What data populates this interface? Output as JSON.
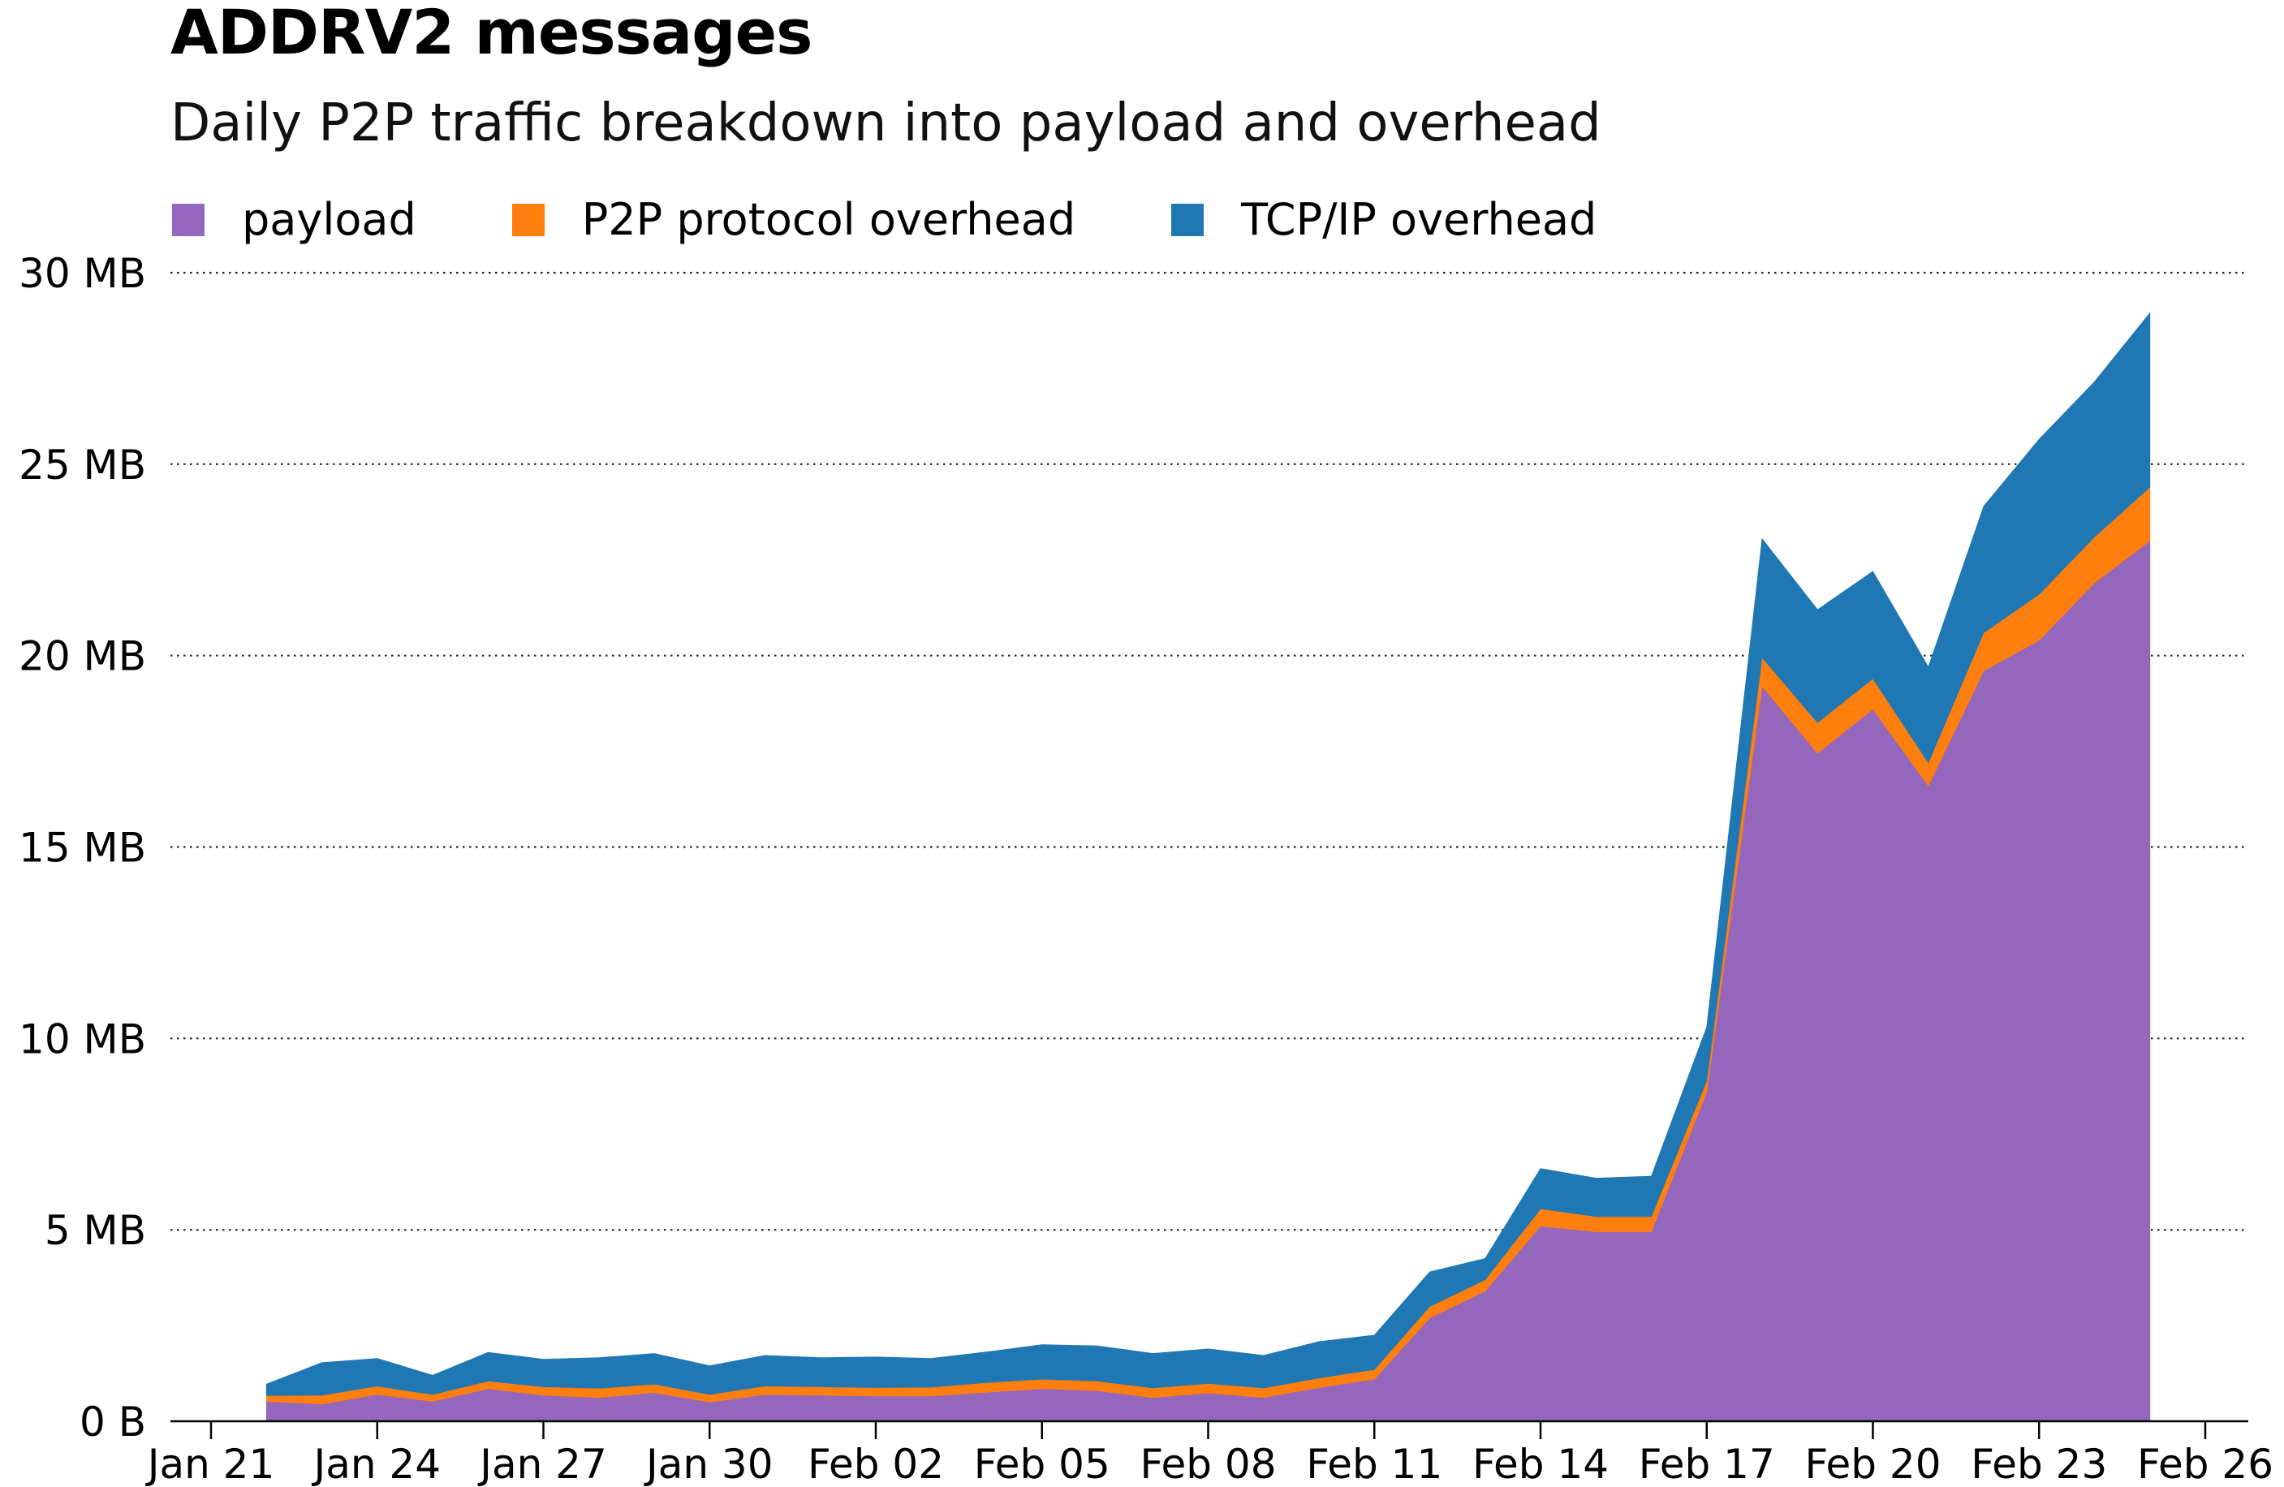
{
  "chart_data": {
    "type": "area",
    "stacked": true,
    "title": "ADDRV2 messages",
    "subtitle": "Daily P2P traffic breakdown into payload and overhead",
    "xlabel": "",
    "ylabel": "",
    "x_start": "2021-01-22",
    "x_end": "2021-02-25",
    "x_ticks": [
      {
        "date": "2021-01-21",
        "label": "Jan 21"
      },
      {
        "date": "2021-01-24",
        "label": "Jan 24"
      },
      {
        "date": "2021-01-27",
        "label": "Jan 27"
      },
      {
        "date": "2021-01-30",
        "label": "Jan 30"
      },
      {
        "date": "2021-02-02",
        "label": "Feb 02"
      },
      {
        "date": "2021-02-05",
        "label": "Feb 05"
      },
      {
        "date": "2021-02-08",
        "label": "Feb 08"
      },
      {
        "date": "2021-02-11",
        "label": "Feb 11"
      },
      {
        "date": "2021-02-14",
        "label": "Feb 14"
      },
      {
        "date": "2021-02-17",
        "label": "Feb 17"
      },
      {
        "date": "2021-02-20",
        "label": "Feb 20"
      },
      {
        "date": "2021-02-23",
        "label": "Feb 23"
      },
      {
        "date": "2021-02-26",
        "label": "Feb 26"
      }
    ],
    "y_ticks": [
      {
        "value": 0,
        "label": "0 B"
      },
      {
        "value": 5,
        "label": "5 MB"
      },
      {
        "value": 10,
        "label": "10 MB"
      },
      {
        "value": 15,
        "label": "15 MB"
      },
      {
        "value": 20,
        "label": "20 MB"
      },
      {
        "value": 25,
        "label": "25 MB"
      },
      {
        "value": 30,
        "label": "30 MB"
      }
    ],
    "ylim": [
      0,
      30
    ],
    "y_unit": "MB",
    "grid": "horizontal dotted",
    "legend_position": "top-left",
    "series": [
      {
        "name": "payload",
        "color": "#9467bd",
        "values": [
          0.52,
          0.45,
          0.7,
          0.52,
          0.85,
          0.68,
          0.62,
          0.75,
          0.5,
          0.7,
          0.68,
          0.66,
          0.66,
          0.76,
          0.85,
          0.8,
          0.62,
          0.74,
          0.62,
          0.88,
          1.1,
          2.7,
          3.4,
          5.1,
          4.95,
          4.95,
          8.6,
          19.2,
          17.45,
          18.6,
          16.6,
          19.6,
          20.4,
          21.9,
          23.0
        ]
      },
      {
        "name": "P2P protocol overhead",
        "color": "#ff7f0e",
        "values": [
          0.15,
          0.23,
          0.22,
          0.18,
          0.2,
          0.22,
          0.24,
          0.22,
          0.2,
          0.22,
          0.22,
          0.22,
          0.23,
          0.25,
          0.25,
          0.25,
          0.25,
          0.25,
          0.25,
          0.25,
          0.25,
          0.3,
          0.3,
          0.45,
          0.4,
          0.4,
          0.3,
          0.75,
          0.8,
          0.8,
          0.6,
          1.0,
          1.2,
          1.2,
          1.4
        ]
      },
      {
        "name": "TCP/IP overhead",
        "color": "#1f77b4",
        "values": [
          0.3,
          0.85,
          0.72,
          0.5,
          0.75,
          0.72,
          0.8,
          0.8,
          0.75,
          0.8,
          0.76,
          0.8,
          0.75,
          0.8,
          0.9,
          0.92,
          0.9,
          0.9,
          0.85,
          0.95,
          0.9,
          0.9,
          0.55,
          1.05,
          1.0,
          1.05,
          1.4,
          3.1,
          2.95,
          2.8,
          2.5,
          3.3,
          4.05,
          4.05,
          4.55
        ]
      }
    ]
  }
}
